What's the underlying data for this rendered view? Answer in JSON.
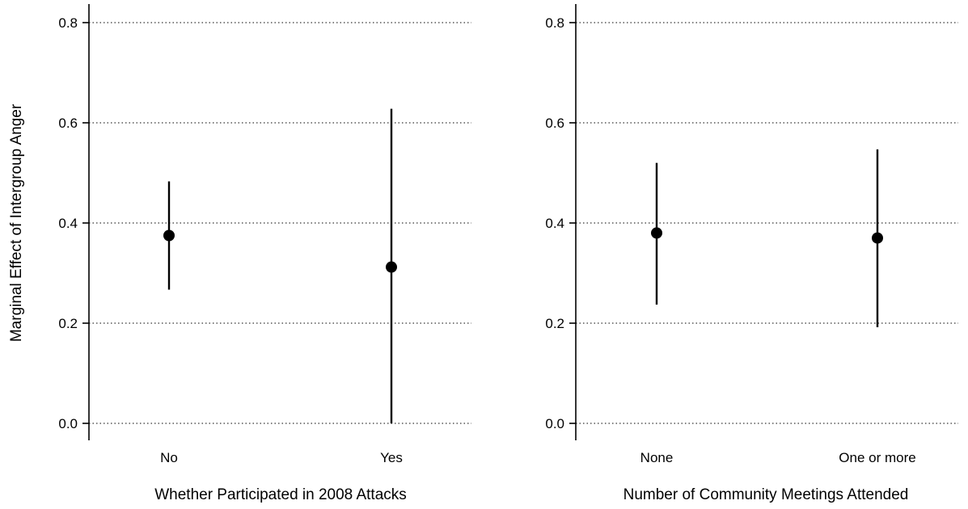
{
  "chart_data": [
    {
      "type": "scatter",
      "title": "",
      "xlabel": "Whether Participated in 2008 Attacks",
      "ylabel": "Marginal Effect of Intergroup Anger",
      "categories": [
        "No",
        "Yes"
      ],
      "estimates": [
        0.375,
        0.312
      ],
      "ci_lower": [
        0.267,
        0.0
      ],
      "ci_upper": [
        0.483,
        0.628
      ],
      "ylim": [
        0,
        0.8
      ],
      "yticks": [
        0.0,
        0.2,
        0.4,
        0.6,
        0.8
      ],
      "ytick_labels": [
        "0.0",
        "0.2",
        "0.4",
        "0.6",
        "0.8"
      ],
      "grid": "horizontal dotted"
    },
    {
      "type": "scatter",
      "title": "",
      "xlabel": "Number of Community Meetings Attended",
      "ylabel": "",
      "categories": [
        "None",
        "One or more"
      ],
      "estimates": [
        0.38,
        0.37
      ],
      "ci_lower": [
        0.237,
        0.192
      ],
      "ci_upper": [
        0.52,
        0.547
      ],
      "ylim": [
        0,
        0.8
      ],
      "yticks": [
        0.0,
        0.2,
        0.4,
        0.6,
        0.8
      ],
      "ytick_labels": [
        "0.0",
        "0.2",
        "0.4",
        "0.6",
        "0.8"
      ],
      "grid": "horizontal dotted"
    }
  ]
}
